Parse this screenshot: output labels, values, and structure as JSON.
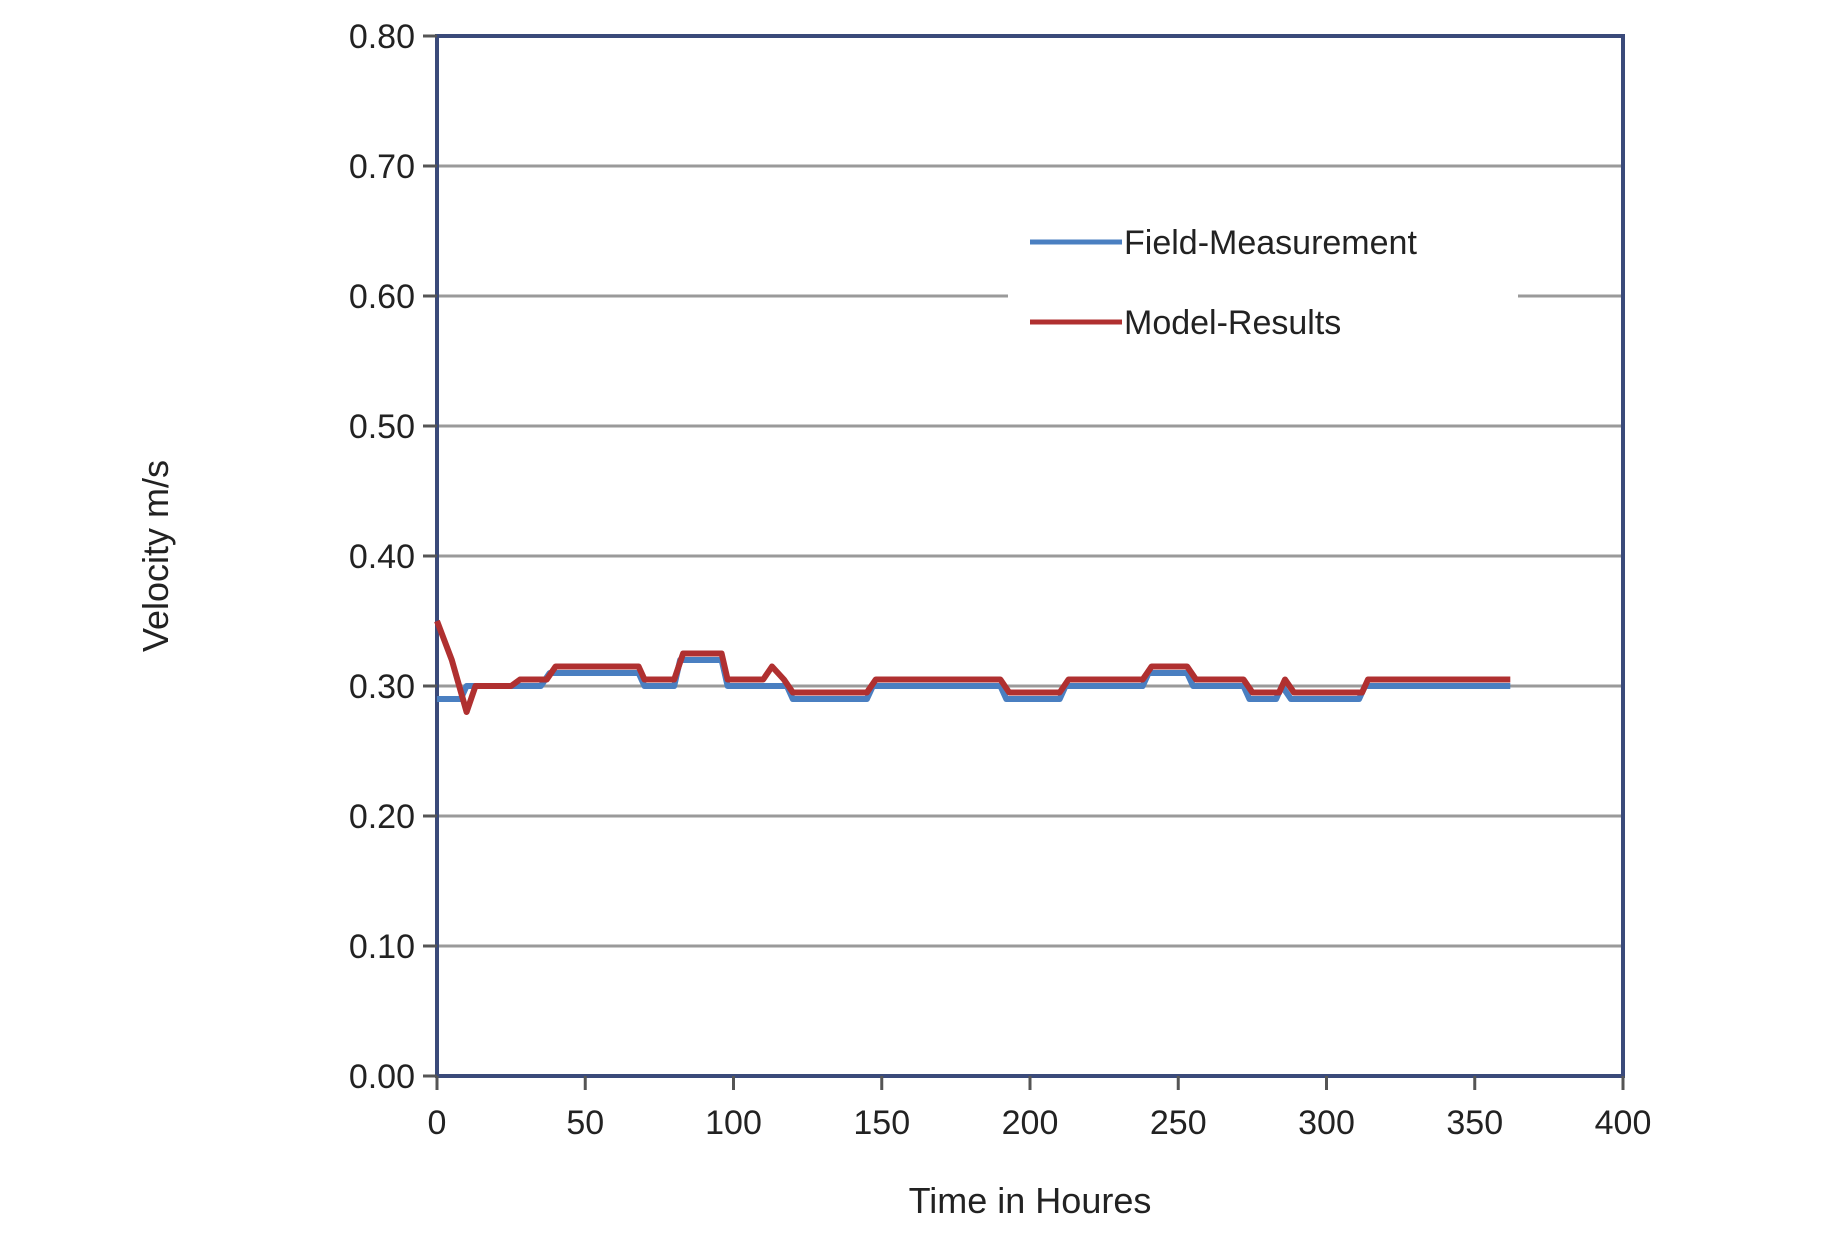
{
  "chart_data": {
    "type": "line",
    "title": "",
    "xlabel": "Time in Houres",
    "ylabel": "Velocity m/s",
    "xlim": [
      0,
      400
    ],
    "ylim": [
      0,
      0.8
    ],
    "x_ticks": [
      "0",
      "50",
      "100",
      "150",
      "200",
      "250",
      "300",
      "350",
      "400"
    ],
    "y_ticks": [
      "0.00",
      "0.10",
      "0.20",
      "0.30",
      "0.40",
      "0.50",
      "0.60",
      "0.70",
      "0.80"
    ],
    "grid": "horizontal",
    "legend_position": "top-right",
    "series": [
      {
        "name": "Field-Measurement",
        "color": "#4a7fc1",
        "points": [
          [
            0,
            0.29
          ],
          [
            8,
            0.29
          ],
          [
            10,
            0.3
          ],
          [
            30,
            0.3
          ],
          [
            35,
            0.3
          ],
          [
            38,
            0.31
          ],
          [
            68,
            0.31
          ],
          [
            70,
            0.3
          ],
          [
            80,
            0.3
          ],
          [
            82,
            0.32
          ],
          [
            96,
            0.32
          ],
          [
            98,
            0.3
          ],
          [
            110,
            0.3
          ],
          [
            118,
            0.3
          ],
          [
            120,
            0.29
          ],
          [
            145,
            0.29
          ],
          [
            147,
            0.3
          ],
          [
            190,
            0.3
          ],
          [
            192,
            0.29
          ],
          [
            210,
            0.29
          ],
          [
            212,
            0.3
          ],
          [
            238,
            0.3
          ],
          [
            240,
            0.31
          ],
          [
            253,
            0.31
          ],
          [
            255,
            0.3
          ],
          [
            272,
            0.3
          ],
          [
            274,
            0.29
          ],
          [
            283,
            0.29
          ],
          [
            285,
            0.3
          ],
          [
            288,
            0.29
          ],
          [
            311,
            0.29
          ],
          [
            313,
            0.3
          ],
          [
            362,
            0.3
          ]
        ]
      },
      {
        "name": "Model-Results",
        "color": "#b03030",
        "points": [
          [
            0,
            0.35
          ],
          [
            5,
            0.32
          ],
          [
            10,
            0.28
          ],
          [
            13,
            0.3
          ],
          [
            25,
            0.3
          ],
          [
            28,
            0.305
          ],
          [
            37,
            0.305
          ],
          [
            40,
            0.315
          ],
          [
            68,
            0.315
          ],
          [
            70,
            0.305
          ],
          [
            80,
            0.305
          ],
          [
            83,
            0.325
          ],
          [
            96,
            0.325
          ],
          [
            98,
            0.305
          ],
          [
            110,
            0.305
          ],
          [
            113,
            0.315
          ],
          [
            117,
            0.305
          ],
          [
            120,
            0.295
          ],
          [
            145,
            0.295
          ],
          [
            148,
            0.305
          ],
          [
            190,
            0.305
          ],
          [
            193,
            0.295
          ],
          [
            210,
            0.295
          ],
          [
            213,
            0.305
          ],
          [
            238,
            0.305
          ],
          [
            241,
            0.315
          ],
          [
            253,
            0.315
          ],
          [
            256,
            0.305
          ],
          [
            272,
            0.305
          ],
          [
            275,
            0.295
          ],
          [
            284,
            0.295
          ],
          [
            286,
            0.305
          ],
          [
            289,
            0.295
          ],
          [
            312,
            0.295
          ],
          [
            314,
            0.305
          ],
          [
            362,
            0.305
          ]
        ]
      }
    ]
  }
}
